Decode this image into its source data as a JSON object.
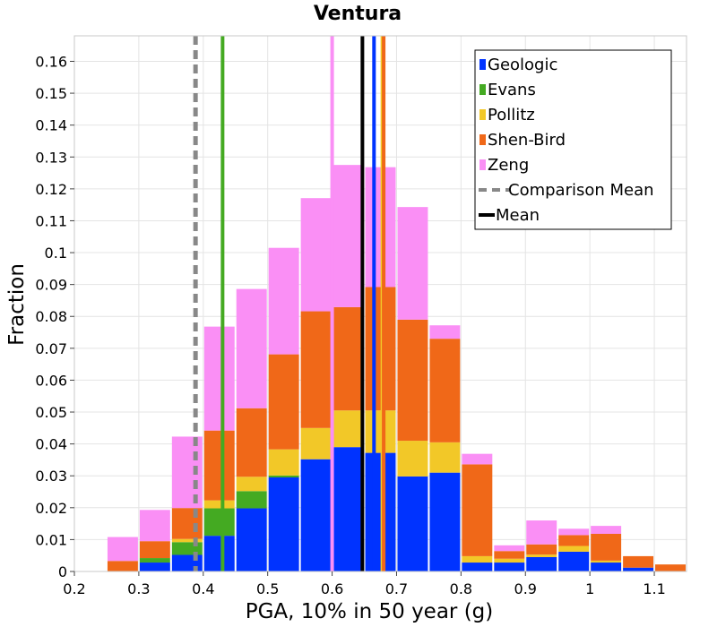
{
  "chart_data": {
    "type": "bar",
    "subtype": "stacked-histogram",
    "title": "Ventura",
    "xlabel": "PGA, 10% in 50 year (g)",
    "ylabel": "Fraction",
    "xlim": [
      0.2,
      1.15
    ],
    "ylim": [
      0,
      0.168
    ],
    "xticks": [
      0.2,
      0.3,
      0.4,
      0.5,
      0.6,
      0.7,
      0.8,
      0.9,
      1.0,
      1.1
    ],
    "xtick_labels": [
      "0.2",
      "0.3",
      "0.4",
      "0.5",
      "0.6",
      "0.7",
      "0.8",
      "0.9",
      "1",
      "1.1"
    ],
    "yticks": [
      0,
      0.01,
      0.02,
      0.03,
      0.04,
      0.05,
      0.06,
      0.07,
      0.08,
      0.09,
      0.1,
      0.11,
      0.12,
      0.13,
      0.14,
      0.15,
      0.16
    ],
    "ytick_labels": [
      "0",
      "0.01",
      "0.02",
      "0.03",
      "0.04",
      "0.05",
      "0.06",
      "0.07",
      "0.08",
      "0.09",
      "0.1",
      "0.11",
      "0.12",
      "0.13",
      "0.14",
      "0.15",
      "0.16"
    ],
    "bin_width": 0.05,
    "bin_starts": [
      0.25,
      0.3,
      0.35,
      0.4,
      0.45,
      0.5,
      0.55,
      0.6,
      0.65,
      0.7,
      0.75,
      0.8,
      0.85,
      0.9,
      0.95,
      1.0,
      1.05,
      1.1
    ],
    "series": [
      {
        "name": "Geologic",
        "color": "#0033ff",
        "values": [
          0,
          0.0028,
          0.0052,
          0.0112,
          0.0198,
          0.0295,
          0.0352,
          0.039,
          0.0372,
          0.0298,
          0.031,
          0.0028,
          0.0028,
          0.0045,
          0.0062,
          0.0028,
          0.0012,
          0
        ]
      },
      {
        "name": "Evans",
        "color": "#44aa22",
        "values": [
          0,
          0.0014,
          0.004,
          0.0086,
          0.0054,
          0.0006,
          0,
          0,
          0,
          0,
          0,
          0,
          0,
          0,
          0,
          0,
          0,
          0
        ]
      },
      {
        "name": "Pollitz",
        "color": "#f2c828",
        "values": [
          0,
          0,
          0.001,
          0.0025,
          0.0045,
          0.0082,
          0.0098,
          0.0115,
          0.0133,
          0.0112,
          0.0095,
          0.002,
          0.0012,
          0.0008,
          0.0018,
          0.0006,
          0,
          0
        ]
      },
      {
        "name": "Shen-Bird",
        "color": "#f06818",
        "values": [
          0.0033,
          0.0053,
          0.0097,
          0.0219,
          0.0215,
          0.0298,
          0.0366,
          0.0324,
          0.0387,
          0.038,
          0.0325,
          0.0288,
          0.0024,
          0.0032,
          0.0034,
          0.0084,
          0.0036,
          0.0022
        ]
      },
      {
        "name": "Zeng",
        "color": "#fa8ff5",
        "values": [
          0.0075,
          0.0098,
          0.0224,
          0.0326,
          0.0374,
          0.0334,
          0.0355,
          0.0446,
          0.0376,
          0.0353,
          0.0042,
          0.0033,
          0.0018,
          0.0075,
          0.002,
          0.0025,
          0,
          0
        ]
      }
    ],
    "reference_lines": [
      {
        "name": "Geologic mean",
        "x": 0.665,
        "color": "#0033ff",
        "style": "solid"
      },
      {
        "name": "Evans mean",
        "x": 0.43,
        "color": "#44aa22",
        "style": "solid"
      },
      {
        "name": "Pollitz mean",
        "x": 0.678,
        "color": "#f2c828",
        "style": "solid"
      },
      {
        "name": "Shen-Bird mean",
        "x": 0.68,
        "color": "#f06818",
        "style": "solid"
      },
      {
        "name": "Zeng mean",
        "x": 0.6,
        "color": "#fa8ff5",
        "style": "solid"
      },
      {
        "name": "Comparison Mean",
        "x": 0.388,
        "color": "#888888",
        "style": "dashed"
      },
      {
        "name": "Mean",
        "x": 0.647,
        "color": "#000000",
        "style": "solid"
      }
    ],
    "legend": {
      "position": "top-right",
      "entries": [
        {
          "label": "Geologic",
          "color": "#0033ff",
          "kind": "box"
        },
        {
          "label": "Evans",
          "color": "#44aa22",
          "kind": "box"
        },
        {
          "label": "Pollitz",
          "color": "#f2c828",
          "kind": "box"
        },
        {
          "label": "Shen-Bird",
          "color": "#f06818",
          "kind": "box"
        },
        {
          "label": "Zeng",
          "color": "#fa8ff5",
          "kind": "box"
        },
        {
          "label": "Comparison Mean",
          "color": "#888888",
          "kind": "dashed"
        },
        {
          "label": "Mean",
          "color": "#000000",
          "kind": "line"
        }
      ]
    },
    "grid": true
  }
}
